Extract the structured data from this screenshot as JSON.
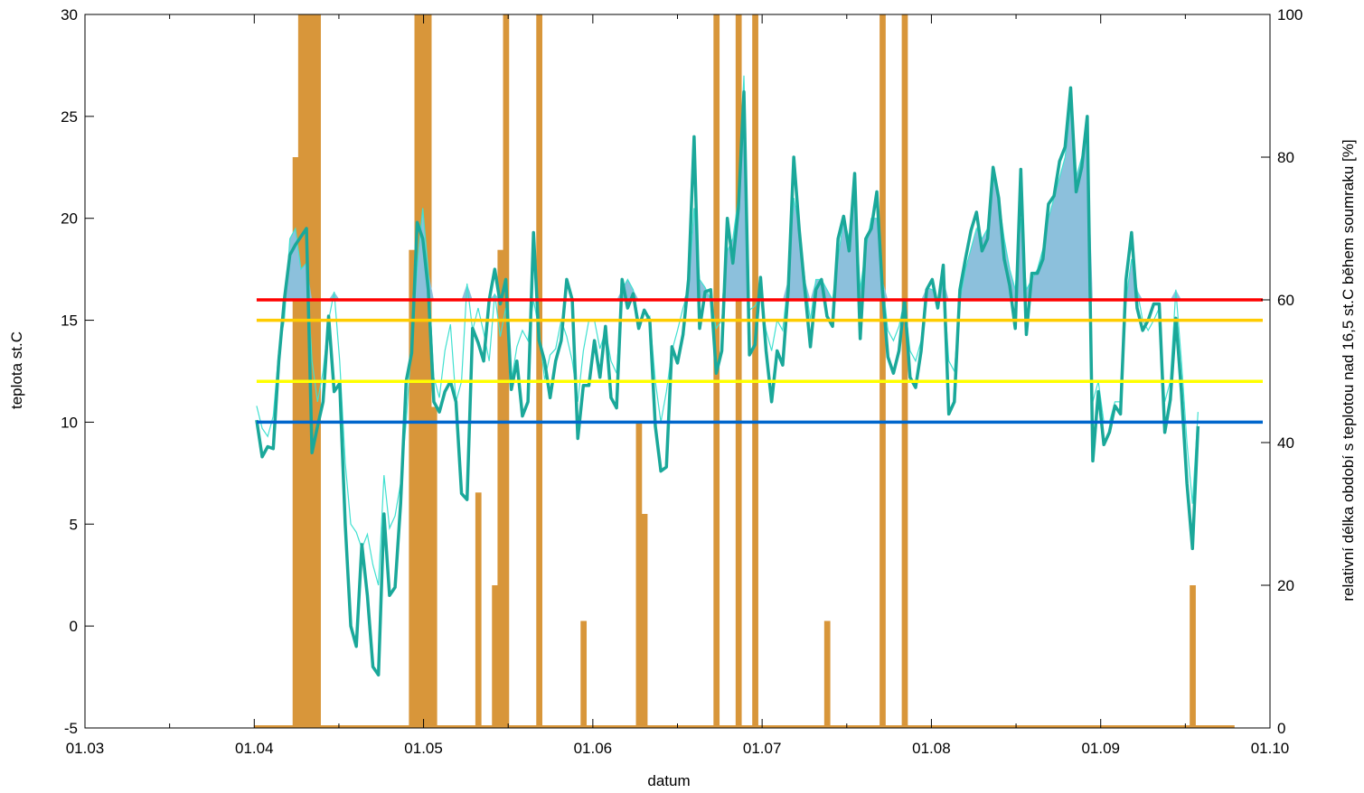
{
  "chart_data": {
    "type": "line",
    "xlabel": "datum",
    "ylabel": "teplota st.C",
    "y2label": "relativní délka období s teplotou nad 16,5 st.C během soumraku [%]",
    "x_ticks": [
      "01.03",
      "01.04",
      "01.05",
      "01.06",
      "01.07",
      "01.08",
      "01.09",
      "01.10"
    ],
    "xlim": [
      "2023-03-01",
      "2023-10-01"
    ],
    "ylim": [
      -5,
      30
    ],
    "y_ticks": [
      -5,
      0,
      5,
      10,
      15,
      20,
      25,
      30
    ],
    "y2lim": [
      0,
      100
    ],
    "y2_ticks": [
      0,
      20,
      40,
      60,
      80,
      100
    ],
    "grid": false,
    "legend": "none",
    "colors": {
      "bars": "#d8963a",
      "thick_line": "#1aa89a",
      "thin_line": "#40e0d0",
      "fill_above": "#8cc0dc",
      "ref_red": "#ff0000",
      "ref_orange": "#ffcc00",
      "ref_yellow": "#ffff00",
      "ref_blue": "#0066cc"
    },
    "reference_lines": [
      {
        "y": 16,
        "color": "#ff0000"
      },
      {
        "y": 15,
        "color": "#ffcc00"
      },
      {
        "y": 12,
        "color": "#ffff00"
      },
      {
        "y": 10,
        "color": "#0066cc"
      }
    ],
    "fill_threshold": 16,
    "series": [
      {
        "kind": "line",
        "style": "thick",
        "start_date": "2023-04-01",
        "values": [
          10.1,
          8.3,
          8.8,
          8.7,
          13.0,
          16.0,
          18.2,
          18.7,
          19.1,
          19.5,
          8.5,
          9.8,
          11.0,
          15.2,
          11.5,
          11.9,
          5.0,
          0.0,
          -1.0,
          4.0,
          1.5,
          -2.0,
          -2.4,
          5.5,
          1.5,
          1.9,
          6.0,
          12.0,
          13.4,
          19.8,
          19.0,
          16.5,
          11.0,
          10.5,
          11.5,
          12.0,
          11.0,
          6.5,
          6.2,
          14.6,
          13.9,
          13.0,
          16.0,
          17.5,
          15.8,
          17.0,
          11.6,
          13.0,
          10.3,
          11.0,
          19.3,
          14.0,
          13.0,
          11.2,
          13.0,
          14.0,
          17.0,
          16.0,
          9.2,
          11.8,
          11.8,
          14.0,
          12.2,
          14.7,
          11.2,
          10.7,
          17.0,
          15.6,
          16.3,
          14.6,
          15.5,
          15.0,
          9.8,
          7.6,
          7.8,
          13.7,
          12.9,
          14.3,
          17.0,
          24.0,
          14.6,
          16.4,
          16.5,
          12.4,
          13.5,
          20.0,
          17.8,
          20.5,
          26.2,
          13.3,
          13.8,
          17.1,
          13.5,
          11.0,
          13.5,
          12.8,
          16.5,
          23.0,
          19.4,
          16.5,
          13.7,
          16.5,
          17.0,
          15.2,
          14.7,
          19.0,
          20.1,
          18.4,
          22.2,
          14.1,
          19.0,
          19.5,
          21.3,
          16.5,
          13.2,
          12.4,
          13.5,
          16.0,
          12.2,
          11.7,
          13.5,
          16.5,
          17.0,
          15.6,
          17.7,
          10.4,
          11.0,
          16.5,
          18.0,
          19.4,
          20.3,
          18.4,
          19.0,
          22.5,
          21.0,
          18.0,
          16.7,
          14.6,
          22.4,
          14.3,
          17.3,
          17.3,
          18.0,
          20.7,
          21.1,
          22.8,
          23.5,
          26.4,
          21.3,
          22.5,
          25.0,
          8.1,
          11.5,
          8.9,
          9.5,
          10.8,
          10.4,
          17.0,
          19.3,
          15.6,
          14.5,
          15.0,
          15.8,
          15.8,
          9.5,
          11.1,
          15.1,
          11.5,
          7.0,
          3.8,
          9.8
        ]
      },
      {
        "kind": "line",
        "style": "thin",
        "start_date": "2023-04-01",
        "values": [
          10.8,
          9.7,
          9.3,
          10.3,
          13.5,
          15.0,
          19.0,
          19.5,
          17.5,
          17.8,
          13.0,
          11.0,
          12.5,
          15.0,
          16.4,
          13.0,
          8.0,
          5.0,
          4.6,
          3.8,
          4.5,
          3.0,
          2.0,
          7.4,
          4.8,
          5.4,
          7.0,
          10.0,
          14.0,
          17.6,
          20.5,
          17.4,
          12.2,
          11.2,
          13.5,
          14.8,
          11.0,
          12.0,
          16.8,
          14.5,
          15.6,
          14.4,
          13.0,
          16.3,
          14.2,
          15.6,
          12.0,
          13.7,
          14.5,
          14.0,
          16.0,
          14.5,
          12.1,
          13.3,
          13.6,
          15.0,
          14.2,
          13.0,
          11.0,
          13.5,
          15.0,
          15.0,
          13.6,
          14.5,
          13.0,
          12.4,
          16.5,
          17.0,
          16.5,
          15.0,
          15.0,
          15.2,
          12.0,
          10.0,
          11.5,
          13.5,
          14.5,
          15.6,
          16.5,
          20.5,
          17.0,
          16.6,
          16.0,
          14.6,
          15.0,
          18.4,
          19.0,
          21.0,
          27.0,
          15.5,
          15.7,
          16.2,
          14.5,
          13.5,
          15.0,
          14.5,
          17.0,
          21.0,
          19.5,
          17.0,
          15.0,
          17.0,
          17.0,
          16.5,
          16.0,
          18.0,
          20.0,
          19.0,
          21.0,
          16.5,
          18.5,
          20.0,
          20.0,
          17.0,
          14.5,
          14.0,
          14.7,
          16.0,
          13.5,
          13.0,
          14.0,
          16.6,
          16.5,
          16.0,
          17.0,
          13.0,
          12.5,
          16.0,
          17.5,
          18.5,
          19.5,
          19.0,
          19.5,
          22.0,
          21.0,
          19.0,
          17.5,
          16.5,
          20.0,
          16.5,
          17.0,
          17.5,
          18.5,
          20.0,
          21.0,
          22.0,
          23.0,
          25.5,
          22.0,
          23.0,
          24.0,
          11.0,
          12.0,
          10.0,
          10.0,
          11.0,
          11.0,
          16.0,
          18.0,
          16.5,
          15.0,
          14.5,
          15.0,
          15.6,
          11.0,
          12.0,
          16.5,
          13.0,
          9.0,
          6.0,
          10.5
        ]
      },
      {
        "kind": "bar",
        "axis": "y2",
        "start_date": "2023-04-01",
        "values": [
          0,
          0,
          0,
          0,
          0,
          0,
          0,
          80,
          100,
          100,
          100,
          100,
          0,
          0,
          0,
          0,
          0,
          0,
          0,
          0,
          0,
          0,
          0,
          0,
          0,
          0,
          0,
          0,
          67,
          100,
          100,
          100,
          45,
          0,
          0,
          0,
          0,
          0,
          0,
          0,
          33,
          0,
          0,
          20,
          67,
          100,
          0,
          0,
          0,
          0,
          0,
          100,
          0,
          0,
          0,
          0,
          0,
          0,
          0,
          15,
          0,
          0,
          0,
          0,
          0,
          0,
          0,
          0,
          0,
          43,
          30,
          0,
          0,
          0,
          0,
          0,
          0,
          0,
          0,
          0,
          0,
          0,
          0,
          100,
          0,
          0,
          0,
          100,
          0,
          0,
          100,
          0,
          0,
          0,
          0,
          0,
          0,
          0,
          0,
          0,
          0,
          0,
          0,
          15,
          0,
          0,
          0,
          0,
          0,
          0,
          0,
          0,
          0,
          100,
          0,
          0,
          0,
          100,
          0,
          0,
          0,
          0,
          0,
          0,
          0,
          0,
          0,
          0,
          0,
          0,
          0,
          0,
          0,
          0,
          0,
          0,
          0,
          0,
          0,
          0,
          0,
          0,
          0,
          0,
          0,
          0,
          0,
          0,
          0,
          0,
          0,
          0,
          0,
          0,
          0,
          0,
          0,
          0,
          0,
          0,
          0,
          0,
          0,
          0,
          0,
          0,
          0,
          0,
          0,
          20,
          0,
          0,
          0,
          0,
          0,
          0,
          0
        ]
      }
    ]
  }
}
